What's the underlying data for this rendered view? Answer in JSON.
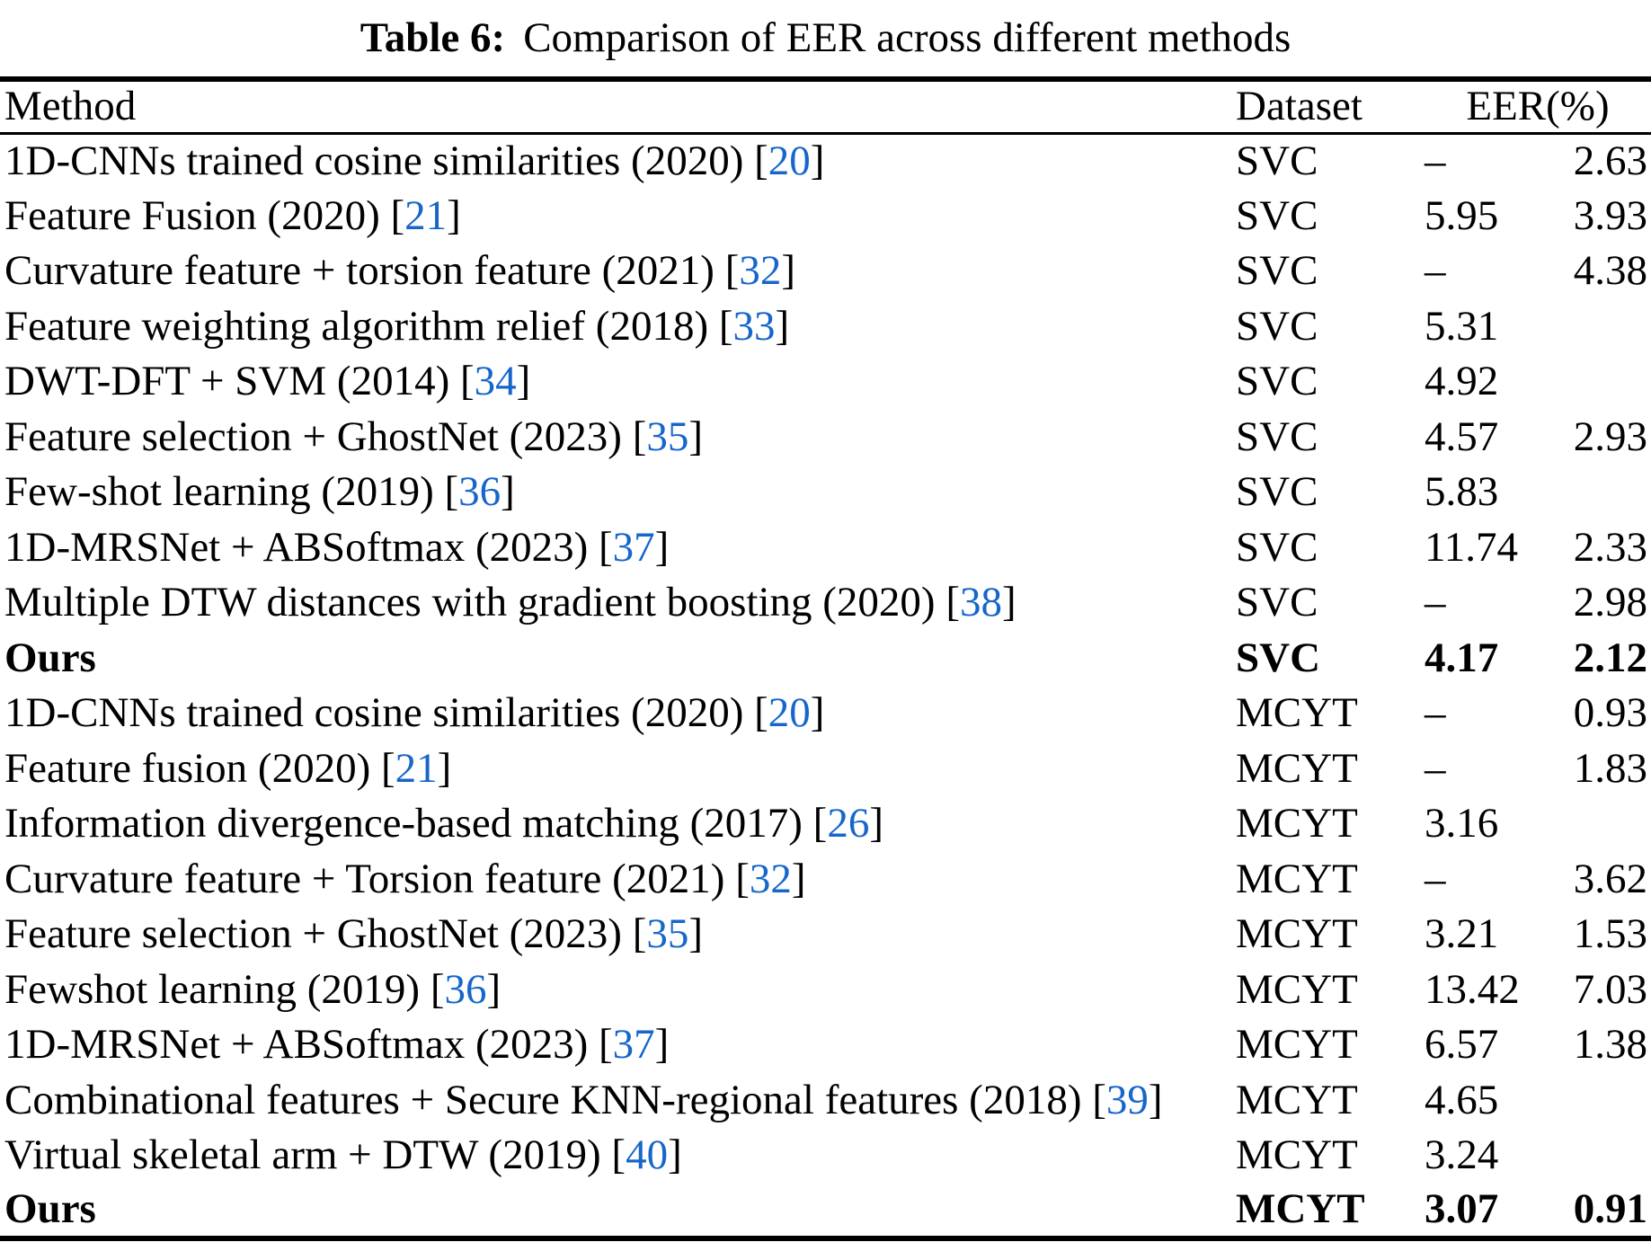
{
  "caption": {
    "label": "Table 6:",
    "text": "Comparison of EER across different methods"
  },
  "colors": {
    "citation_blue": "#1666CB",
    "text": "#000000",
    "rule": "#000000",
    "background": "#ffffff"
  },
  "table": {
    "columns": {
      "method": "Method",
      "dataset": "Dataset",
      "eer": "EER(%)"
    },
    "citation_brackets": {
      "open": " [",
      "close": "]"
    },
    "rows": [
      {
        "method": "1D-CNNs trained cosine similarities (2020)",
        "ref": "20",
        "dataset": "SVC",
        "eer1": "–",
        "eer2": "2.63",
        "bold": false
      },
      {
        "method": "Feature Fusion (2020)",
        "ref": "21",
        "dataset": "SVC",
        "eer1": "5.95",
        "eer2": "3.93",
        "bold": false
      },
      {
        "method": "Curvature feature + torsion feature (2021)",
        "ref": "32",
        "dataset": "SVC",
        "eer1": "–",
        "eer2": "4.38",
        "bold": false
      },
      {
        "method": "Feature weighting algorithm relief (2018)",
        "ref": "33",
        "dataset": "SVC",
        "eer1": "5.31",
        "eer2": "",
        "bold": false
      },
      {
        "method": "DWT-DFT + SVM (2014)",
        "ref": "34",
        "dataset": "SVC",
        "eer1": "4.92",
        "eer2": "",
        "bold": false
      },
      {
        "method": "Feature selection + GhostNet (2023)",
        "ref": "35",
        "dataset": "SVC",
        "eer1": "4.57",
        "eer2": "2.93",
        "bold": false
      },
      {
        "method": "Few-shot learning (2019)",
        "ref": "36",
        "dataset": "SVC",
        "eer1": "5.83",
        "eer2": "",
        "bold": false
      },
      {
        "method": "1D-MRSNet + ABSoftmax (2023)",
        "ref": "37",
        "dataset": "SVC",
        "eer1": "11.74",
        "eer2": "2.33",
        "bold": false
      },
      {
        "method": "Multiple DTW distances with gradient boosting (2020)",
        "ref": "38",
        "dataset": "SVC",
        "eer1": "–",
        "eer2": "2.98",
        "bold": false
      },
      {
        "method": "Ours",
        "ref": null,
        "dataset": "SVC",
        "eer1": "4.17",
        "eer2": "2.12",
        "bold": true
      },
      {
        "method": "1D-CNNs trained cosine similarities (2020)",
        "ref": "20",
        "dataset": "MCYT",
        "eer1": "–",
        "eer2": "0.93",
        "bold": false
      },
      {
        "method": "Feature fusion (2020)",
        "ref": "21",
        "dataset": "MCYT",
        "eer1": "–",
        "eer2": "1.83",
        "bold": false
      },
      {
        "method": "Information divergence-based matching (2017)",
        "ref": "26",
        "dataset": "MCYT",
        "eer1": "3.16",
        "eer2": "",
        "bold": false
      },
      {
        "method": "Curvature feature + Torsion feature (2021)",
        "ref": "32",
        "dataset": "MCYT",
        "eer1": "–",
        "eer2": "3.62",
        "bold": false
      },
      {
        "method": "Feature selection + GhostNet (2023)",
        "ref": "35",
        "dataset": "MCYT",
        "eer1": "3.21",
        "eer2": "1.53",
        "bold": false
      },
      {
        "method": "Fewshot learning (2019)",
        "ref": "36",
        "dataset": "MCYT",
        "eer1": "13.42",
        "eer2": "7.03",
        "bold": false
      },
      {
        "method": "1D-MRSNet + ABSoftmax (2023)",
        "ref": "37",
        "dataset": "MCYT",
        "eer1": "6.57",
        "eer2": "1.38",
        "bold": false
      },
      {
        "method": "Combinational features + Secure KNN-regional features (2018)",
        "ref": "39",
        "dataset": "MCYT",
        "eer1": "4.65",
        "eer2": "",
        "bold": false
      },
      {
        "method": "Virtual skeletal arm + DTW (2019)",
        "ref": "40",
        "dataset": "MCYT",
        "eer1": "3.24",
        "eer2": "",
        "bold": false
      },
      {
        "method": "Ours",
        "ref": null,
        "dataset": "MCYT",
        "eer1": "3.07",
        "eer2": "0.91",
        "bold": true
      }
    ]
  }
}
